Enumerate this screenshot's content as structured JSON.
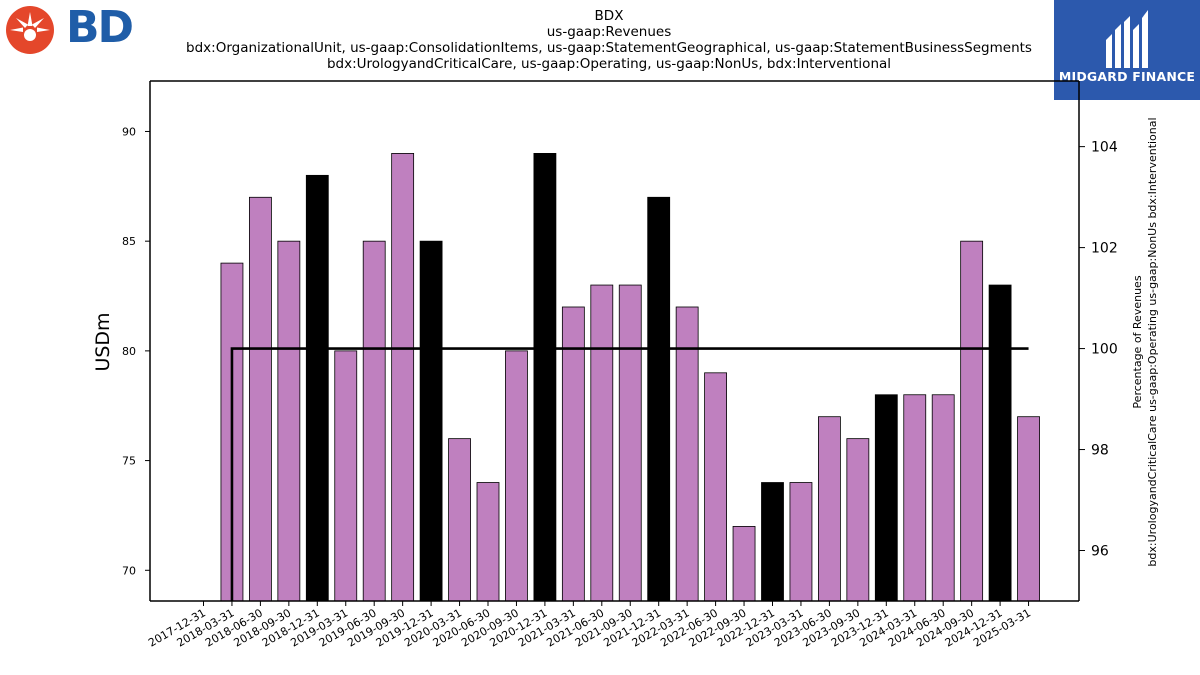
{
  "branding": {
    "left_logo_text": "BD",
    "right_logo_text": "MIDGARD FINANCE",
    "left_logo_color": "#e4472b",
    "left_logo_text_color": "#1f5da8",
    "right_logo_bg": "#2c59ad"
  },
  "chart_data": {
    "type": "bar",
    "title_lines": [
      "BDX",
      "us-gaap:Revenues",
      "bdx:OrganizationalUnit, us-gaap:ConsolidationItems, us-gaap:StatementGeographical, us-gaap:StatementBusinessSegments",
      "bdx:UrologyandCriticalCare, us-gaap:Operating, us-gaap:NonUs, bdx:Interventional"
    ],
    "ylabel": "USDm",
    "ylabel_right": "Percentage of Revenues\nbdx:UrologyandCriticalCare us-gaap:Operating us-gaap:NonUs bdx:Interventional",
    "ylim": [
      68.6,
      92.3
    ],
    "ylim_right": [
      95.0,
      105.3
    ],
    "yticks": [
      70,
      75,
      80,
      85,
      90
    ],
    "yticks_right": [
      96,
      98,
      100,
      102,
      104
    ],
    "categories": [
      "2017-12-31",
      "2018-03-31",
      "2018-06-30",
      "2018-09-30",
      "2018-12-31",
      "2019-03-31",
      "2019-06-30",
      "2019-09-30",
      "2019-12-31",
      "2020-03-31",
      "2020-06-30",
      "2020-09-30",
      "2020-12-31",
      "2021-03-31",
      "2021-06-30",
      "2021-09-30",
      "2021-12-31",
      "2022-03-31",
      "2022-06-30",
      "2022-09-30",
      "2022-12-31",
      "2023-03-31",
      "2023-06-30",
      "2023-09-30",
      "2023-12-31",
      "2024-03-31",
      "2024-06-30",
      "2024-09-30",
      "2024-12-31",
      "2025-03-31"
    ],
    "bars": [
      {
        "date": "2018-03-31",
        "value": 84,
        "kind": "quarter"
      },
      {
        "date": "2018-06-30",
        "value": 87,
        "kind": "quarter"
      },
      {
        "date": "2018-09-30",
        "value": 85,
        "kind": "quarter"
      },
      {
        "date": "2018-12-31",
        "value": 88,
        "kind": "year-end"
      },
      {
        "date": "2019-03-31",
        "value": 80,
        "kind": "quarter"
      },
      {
        "date": "2019-06-30",
        "value": 85,
        "kind": "quarter"
      },
      {
        "date": "2019-09-30",
        "value": 89,
        "kind": "quarter"
      },
      {
        "date": "2019-12-31",
        "value": 85,
        "kind": "year-end"
      },
      {
        "date": "2020-03-31",
        "value": 76,
        "kind": "quarter"
      },
      {
        "date": "2020-06-30",
        "value": 74,
        "kind": "quarter"
      },
      {
        "date": "2020-09-30",
        "value": 80,
        "kind": "quarter"
      },
      {
        "date": "2020-12-31",
        "value": 89,
        "kind": "year-end"
      },
      {
        "date": "2021-03-31",
        "value": 82,
        "kind": "quarter"
      },
      {
        "date": "2021-06-30",
        "value": 83,
        "kind": "quarter"
      },
      {
        "date": "2021-09-30",
        "value": 83,
        "kind": "quarter"
      },
      {
        "date": "2021-12-31",
        "value": 87,
        "kind": "year-end"
      },
      {
        "date": "2022-03-31",
        "value": 82,
        "kind": "quarter"
      },
      {
        "date": "2022-06-30",
        "value": 79,
        "kind": "quarter"
      },
      {
        "date": "2022-09-30",
        "value": 72,
        "kind": "quarter"
      },
      {
        "date": "2022-12-31",
        "value": 74,
        "kind": "year-end"
      },
      {
        "date": "2023-03-31",
        "value": 74,
        "kind": "quarter"
      },
      {
        "date": "2023-06-30",
        "value": 77,
        "kind": "quarter"
      },
      {
        "date": "2023-09-30",
        "value": 76,
        "kind": "quarter"
      },
      {
        "date": "2023-12-31",
        "value": 78,
        "kind": "year-end"
      },
      {
        "date": "2024-03-31",
        "value": 78,
        "kind": "quarter"
      },
      {
        "date": "2024-06-30",
        "value": 78,
        "kind": "quarter"
      },
      {
        "date": "2024-09-30",
        "value": 85,
        "kind": "quarter"
      },
      {
        "date": "2024-12-31",
        "value": 83,
        "kind": "year-end"
      },
      {
        "date": "2025-03-31",
        "value": 77,
        "kind": "quarter"
      }
    ],
    "percentage_line": {
      "axis": "right",
      "points": [
        {
          "date": "2018-03-31",
          "value": 95.0
        },
        {
          "date": "2018-03-31",
          "value": 100
        },
        {
          "date": "2025-03-31",
          "value": 100
        }
      ]
    },
    "colors": {
      "quarter": "#bf80bf",
      "year_end": "#000000",
      "line": "#000000"
    },
    "grid": false,
    "legend": "none"
  }
}
